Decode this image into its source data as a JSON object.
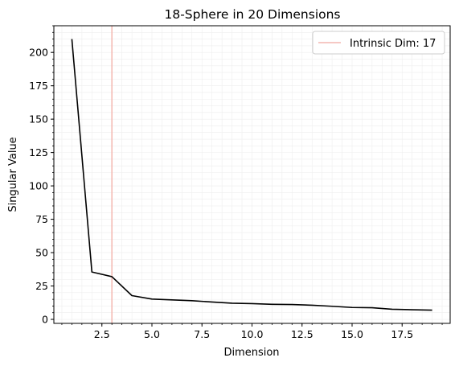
{
  "chart_data": {
    "type": "line",
    "title": "18-Sphere in 20 Dimensions",
    "xlabel": "Dimension",
    "ylabel": "Singular Value",
    "xlim": [
      0.1,
      19.9
    ],
    "ylim": [
      -3,
      220
    ],
    "xticks": [
      2.5,
      5.0,
      7.5,
      10.0,
      12.5,
      15.0,
      17.5
    ],
    "xtick_labels": [
      "2.5",
      "5.0",
      "7.5",
      "10.0",
      "12.5",
      "15.0",
      "17.5"
    ],
    "yticks": [
      0,
      25,
      50,
      75,
      100,
      125,
      150,
      175,
      200
    ],
    "ytick_labels": [
      "0",
      "25",
      "50",
      "75",
      "100",
      "125",
      "150",
      "175",
      "200"
    ],
    "grid": "minor, light",
    "legend_position": "top-right",
    "series": [
      {
        "color": "#000000",
        "x": [
          1,
          2,
          3,
          4,
          5,
          6,
          7,
          8,
          9,
          10,
          11,
          12,
          13,
          14,
          15,
          16,
          17,
          18,
          19
        ],
        "y": [
          210,
          35.5,
          32,
          17.8,
          15.2,
          14.6,
          14.0,
          13.0,
          12.1,
          11.8,
          11.3,
          11.1,
          10.6,
          9.8,
          8.9,
          8.7,
          7.6,
          7.2,
          6.9
        ]
      }
    ],
    "vline": {
      "x": 3,
      "label": "Intrinsic Dim: 17",
      "color": "#f4b6b0"
    }
  }
}
